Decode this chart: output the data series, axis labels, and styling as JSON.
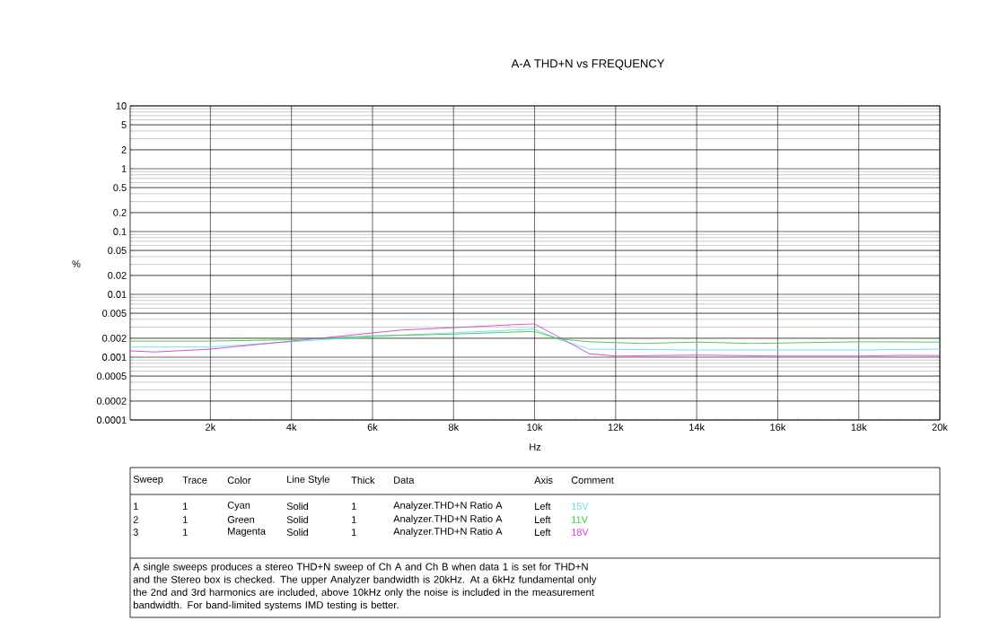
{
  "chart_data": {
    "type": "line",
    "title": "A-A THD+N vs FREQUENCY",
    "xlabel": "Hz",
    "ylabel": "%",
    "xlim": [
      20,
      20000
    ],
    "ylim": [
      0.0001,
      10
    ],
    "log": "y",
    "grid": true,
    "legend": "bottom",
    "marker": "none",
    "line_style": "solid",
    "xticks": [
      {
        "value": 2000,
        "label": "2k"
      },
      {
        "value": 4000,
        "label": "4k"
      },
      {
        "value": 6000,
        "label": "6k"
      },
      {
        "value": 8000,
        "label": "8k"
      },
      {
        "value": 10000,
        "label": "10k"
      },
      {
        "value": 12000,
        "label": "12k"
      },
      {
        "value": 14000,
        "label": "14k"
      },
      {
        "value": 16000,
        "label": "16k"
      },
      {
        "value": 18000,
        "label": "18k"
      },
      {
        "value": 20000,
        "label": "20k"
      }
    ],
    "yticks": [
      0.0001,
      0.0002,
      0.0005,
      0.001,
      0.002,
      0.005,
      0.01,
      0.02,
      0.05,
      0.1,
      0.2,
      0.5,
      1,
      2,
      5,
      10
    ],
    "series": [
      {
        "name": "15V",
        "color": "#5ce1f0",
        "x": [
          20,
          1990,
          4000,
          6000,
          8020,
          9990,
          10610,
          11360,
          14020,
          18000,
          20000
        ],
        "values": [
          0.00145,
          0.00145,
          0.00176,
          0.00213,
          0.00245,
          0.0028,
          0.0019,
          0.00134,
          0.0013,
          0.0013,
          0.00134
        ]
      },
      {
        "name": "11V",
        "color": "#33cc33",
        "x": [
          20,
          1990,
          4000,
          6000,
          8020,
          9990,
          10610,
          11360,
          12690,
          14020,
          15350,
          18000,
          20000
        ],
        "values": [
          0.0018,
          0.0018,
          0.0019,
          0.00218,
          0.00233,
          0.00258,
          0.00195,
          0.00176,
          0.00165,
          0.00174,
          0.00165,
          0.00176,
          0.00174
        ]
      },
      {
        "name": "18V",
        "color": "#d040d0",
        "x": [
          20,
          640,
          1990,
          4000,
          6000,
          6710,
          8020,
          9990,
          11360,
          12030,
          14020,
          16010,
          18000,
          19110,
          20000
        ],
        "values": [
          0.00126,
          0.00121,
          0.00134,
          0.0018,
          0.00243,
          0.0027,
          0.00296,
          0.0034,
          0.00113,
          0.00104,
          0.00108,
          0.00104,
          0.00104,
          0.00107,
          0.00106
        ]
      }
    ],
    "annotations": [
      "Sweep",
      "Trace",
      "Color",
      "Line Style",
      "Thick",
      "Data",
      "Axis",
      "Comment",
      "1",
      "1",
      "Cyan",
      "Solid",
      "1",
      "Analyzer.THD+N Ratio A",
      "Left",
      "2",
      "1",
      "Green",
      "Solid",
      "1",
      "Analyzer.THD+N Ratio A",
      "Left",
      "3",
      "1",
      "Magenta",
      "Solid",
      "1",
      "Analyzer.THD+N Ratio A",
      "Left",
      "A single sweeps produces a stereo THD+N sweep of Ch A and Ch B when data 1 is set for THD+N and the Stereo box is checked.  The upper Analyzer bandwidth is 20kHz.  At a 6kHz fundamental only the 2nd and 3rd harmonics are included, above 10kHz only the noise is included in the measurement bandwidth.  For band-limited systems IMD testing is better."
    ]
  }
}
